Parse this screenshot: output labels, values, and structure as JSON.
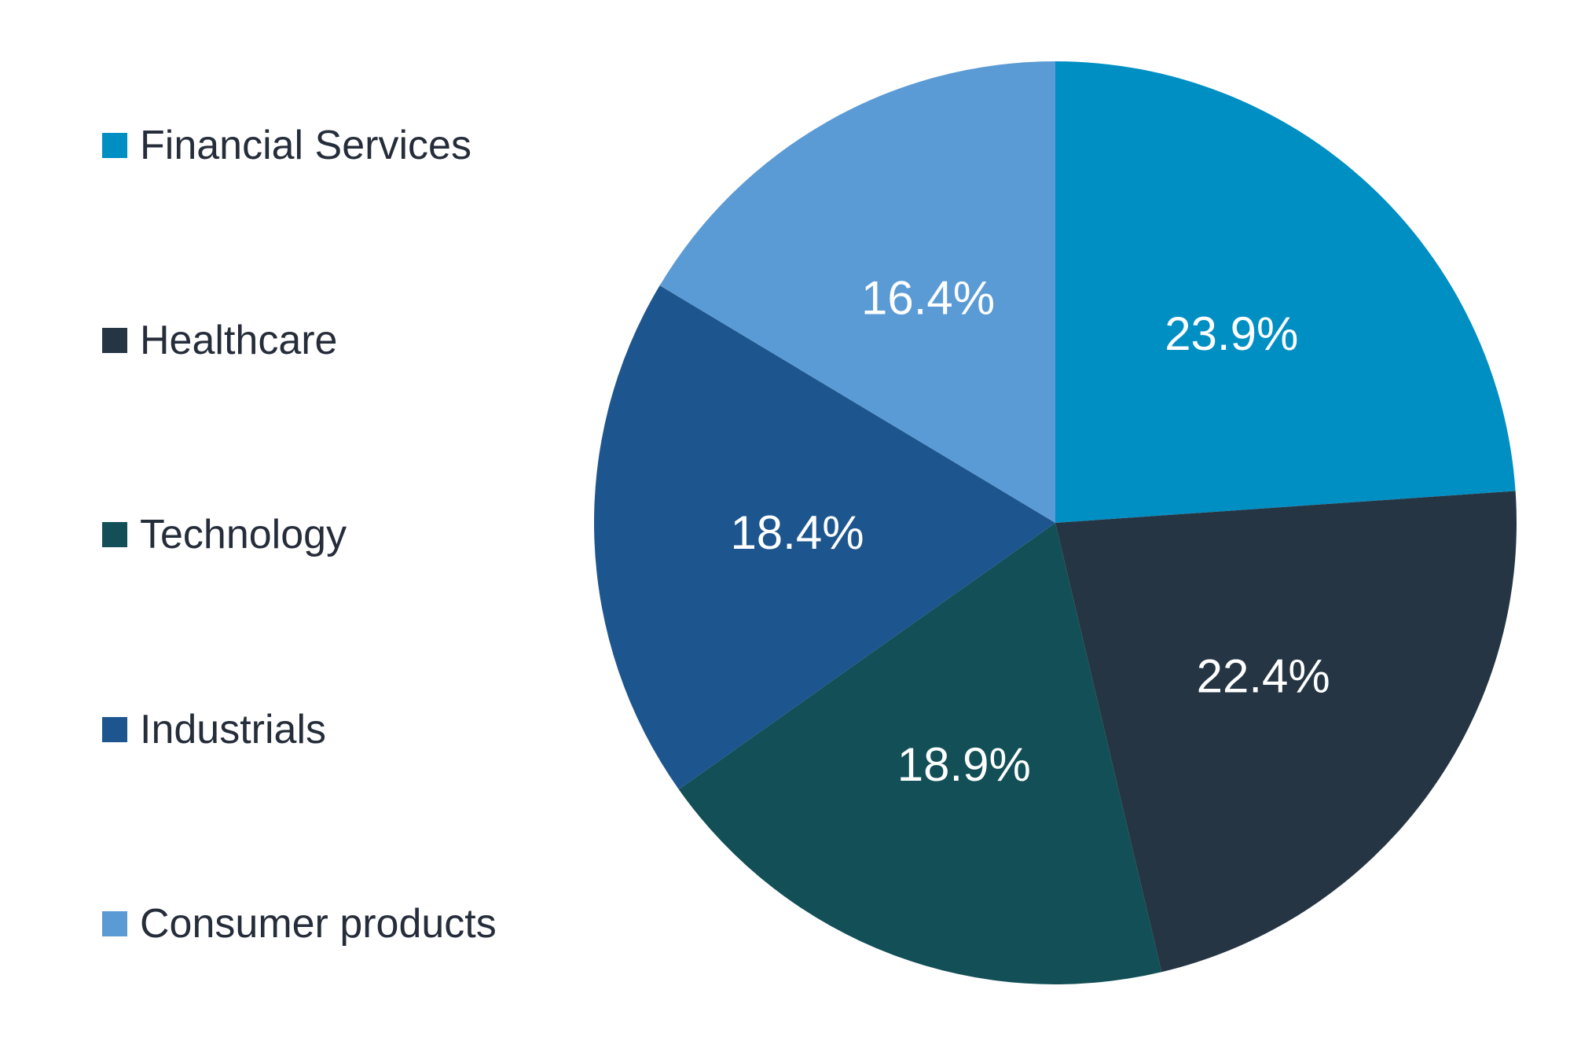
{
  "chart_data": {
    "type": "pie",
    "categories": [
      "Financial Services",
      "Healthcare",
      "Technology",
      "Industrials",
      "Consumer products"
    ],
    "values": [
      23.9,
      22.4,
      18.9,
      18.4,
      16.4
    ],
    "value_labels": [
      "23.9%",
      "22.4%",
      "18.9%",
      "18.4%",
      "16.4%"
    ],
    "colors": [
      "#008fc3",
      "#263544",
      "#124f57",
      "#1d568e",
      "#5b9bd5"
    ],
    "start_angle_deg": 0,
    "direction": "clockwise",
    "legend_position": "left",
    "title": ""
  },
  "legend": {
    "items": [
      {
        "label": "Financial Services",
        "color": "#008fc3"
      },
      {
        "label": "Healthcare",
        "color": "#263544"
      },
      {
        "label": "Technology",
        "color": "#124f57"
      },
      {
        "label": "Industrials",
        "color": "#1d568e"
      },
      {
        "label": "Consumer products",
        "color": "#5b9bd5"
      }
    ]
  }
}
